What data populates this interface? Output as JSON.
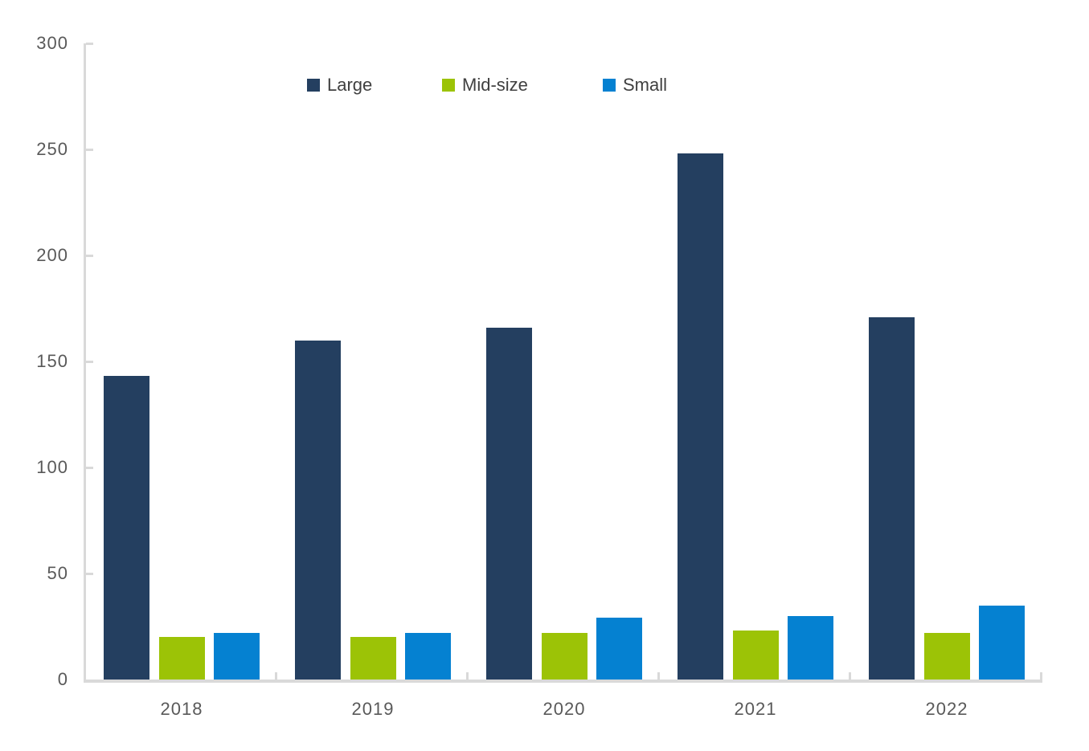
{
  "chart_data": {
    "type": "bar",
    "title": "",
    "xlabel": "",
    "ylabel": "",
    "categories": [
      "2018",
      "2019",
      "2020",
      "2021",
      "2022"
    ],
    "series": [
      {
        "name": "Large",
        "color": "#243F60",
        "values": [
          143,
          160,
          166,
          248,
          171
        ]
      },
      {
        "name": "Mid-size",
        "color": "#9CC306",
        "values": [
          20,
          20,
          22,
          23,
          22
        ]
      },
      {
        "name": "Small",
        "color": "#0581D1",
        "values": [
          22,
          22,
          29,
          30,
          35
        ]
      }
    ],
    "ylim": [
      0,
      300
    ],
    "yticks": [
      0,
      50,
      100,
      150,
      200,
      250,
      300
    ],
    "grid": false,
    "legend_position": "top",
    "axis_color": "#D9D9D9",
    "tick_label_color": "#595959",
    "legend_text_color": "#404040",
    "background_color": "#FFFFFF"
  }
}
